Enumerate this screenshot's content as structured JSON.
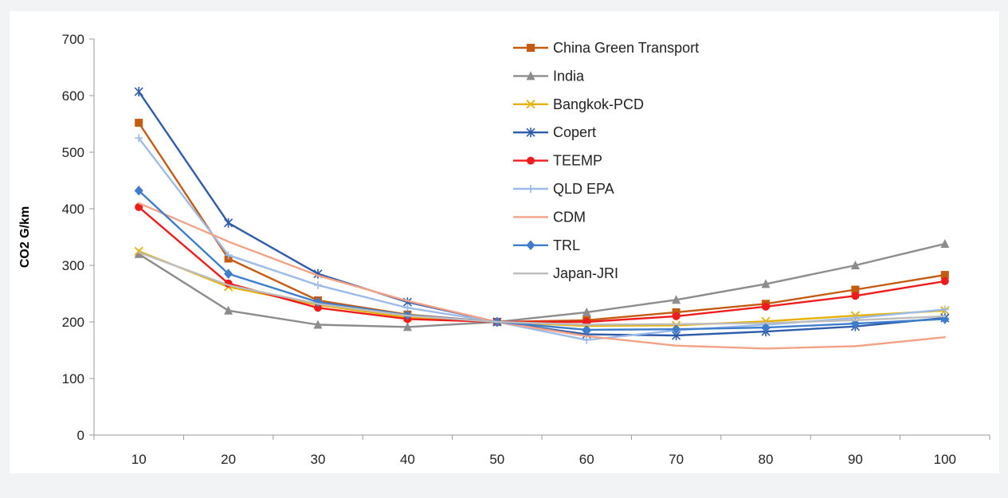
{
  "chart_data": {
    "type": "line",
    "title": "",
    "xlabel": "",
    "ylabel": "CO2 G/km",
    "x": [
      10,
      20,
      30,
      40,
      50,
      60,
      70,
      80,
      90,
      100
    ],
    "xlim": [
      5,
      105
    ],
    "ylim": [
      0,
      700
    ],
    "yticks": [
      0,
      100,
      200,
      300,
      400,
      500,
      600,
      700
    ],
    "grid": false,
    "legend_position": "top-right",
    "series": [
      {
        "name": "China Green Transport",
        "color": "#c55a11",
        "marker": "square",
        "values": [
          552,
          312,
          238,
          213,
          200,
          203,
          217,
          232,
          257,
          283
        ]
      },
      {
        "name": "India",
        "color": "#8c8c8c",
        "marker": "triangle",
        "values": [
          320,
          220,
          195,
          191,
          200,
          217,
          239,
          267,
          300,
          338
        ]
      },
      {
        "name": "Bangkok-PCD",
        "color": "#e6b000",
        "marker": "x",
        "values": [
          325,
          262,
          230,
          208,
          200,
          193,
          194,
          201,
          211,
          220
        ]
      },
      {
        "name": "Copert",
        "color": "#2e5caa",
        "marker": "star",
        "values": [
          607,
          375,
          285,
          235,
          200,
          178,
          176,
          183,
          192,
          207
        ]
      },
      {
        "name": "TEEMP",
        "color": "#ee1c1c",
        "marker": "circle",
        "values": [
          403,
          268,
          225,
          205,
          200,
          200,
          210,
          227,
          246,
          272
        ]
      },
      {
        "name": "QLD EPA",
        "color": "#9cbbe8",
        "marker": "plus",
        "values": [
          525,
          318,
          265,
          225,
          200,
          168,
          185,
          195,
          207,
          222
        ]
      },
      {
        "name": "CDM",
        "color": "#f4a286",
        "marker": "none",
        "values": [
          410,
          342,
          282,
          237,
          200,
          175,
          158,
          153,
          157,
          173
        ]
      },
      {
        "name": "TRL",
        "color": "#3d7dcc",
        "marker": "diamond",
        "values": [
          432,
          285,
          235,
          212,
          200,
          186,
          187,
          190,
          197,
          205
        ]
      },
      {
        "name": "Japan-JRI",
        "color": "#bdbdbd",
        "marker": "none",
        "values": [
          323,
          265,
          232,
          211,
          200,
          195,
          196,
          198,
          203,
          210
        ]
      }
    ]
  }
}
